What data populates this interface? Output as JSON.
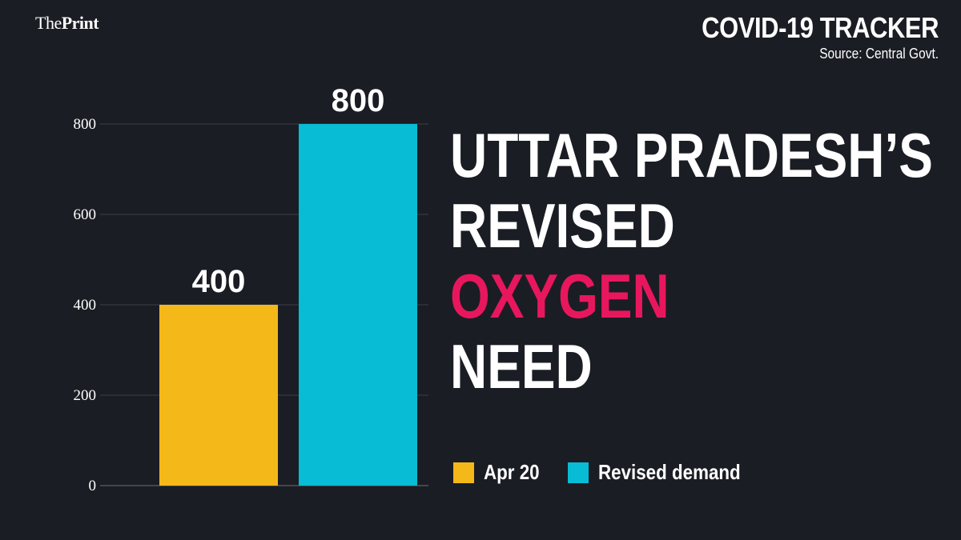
{
  "brand": {
    "part1": "The",
    "part2": "Print"
  },
  "tracker": {
    "title": "COVID-19 TRACKER",
    "source": "Source: Central Govt."
  },
  "headline": {
    "line1": "UTTAR PRADESH’S",
    "line2": "REVISED",
    "line3": "OXYGEN",
    "line4": "NEED"
  },
  "colors": {
    "background": "#1b1d24",
    "accent": "#e8175d",
    "apr20": "#f5b819",
    "revised": "#07bcd4"
  },
  "chart_data": {
    "type": "bar",
    "categories": [
      "Apr 20",
      "Revised demand"
    ],
    "values": [
      400,
      800
    ],
    "data_labels": [
      "400",
      "800"
    ],
    "colors": [
      "#f5b819",
      "#07bcd4"
    ],
    "ylim": [
      0,
      800
    ],
    "yticks": [
      "0",
      "200",
      "400",
      "600",
      "800"
    ],
    "ytick_values": [
      0,
      200,
      400,
      600,
      800
    ],
    "grid": true,
    "legend": [
      "Apr 20",
      "Revised demand"
    ],
    "legend_position": "bottom-right"
  }
}
